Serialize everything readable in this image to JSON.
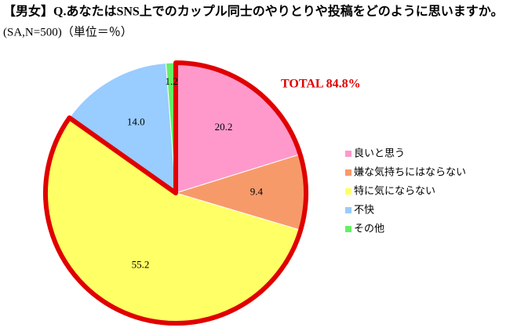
{
  "chart_data": {
    "type": "pie",
    "title": "【男女】Q.あなたはSNS上でのカップル同士のやりとりや投稿をどのように思いますか。",
    "subtitle": "(SA,N=500)（単位＝％）",
    "annotation": "TOTAL 84.8%",
    "categories": [
      "良いと思う",
      "嫌な気持ちにはならない",
      "特に気にならない",
      "不快",
      "その他"
    ],
    "values": [
      20.2,
      9.4,
      55.2,
      14.0,
      1.2
    ],
    "value_labels": [
      "20.2",
      "9.4",
      "55.2",
      "14.0",
      "1.2"
    ],
    "colors": [
      "#ff99cc",
      "#f79a6a",
      "#ffff66",
      "#99ccff",
      "#66ee66"
    ],
    "legend": "right"
  }
}
